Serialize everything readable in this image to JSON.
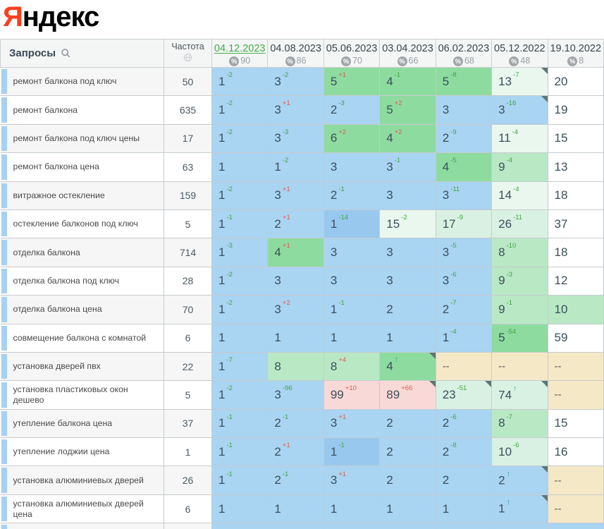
{
  "logo": {
    "ya": "Я",
    "rest": "ндекс"
  },
  "icons": {
    "queries_search": "search-icon",
    "frequency_globe": "globe-icon",
    "coverage_badge": "percent-icon",
    "new_entry_arrow": "↑"
  },
  "colors": {
    "logo_red": "#fc3f1d",
    "selected_date_green": "#3fae49",
    "change_up_green": "#3ba93b",
    "change_down_red": "#e05b52",
    "change_new_teal": "#2ca089",
    "pos_top3_blue": "#a9d4f2",
    "pos_top3_blue_dark": "#98c8ee",
    "pos_top10_green": "#8edb9f",
    "pos_top10_light_green": "#b9e8c5",
    "pos_top30_pale_green": "#d9f1e2",
    "pos_top30_faint_green": "#eaf7ef",
    "pos_drop_pink": "#f9d9d7",
    "pos_none_tan": "#f5e8c7"
  },
  "table": {
    "queries_header": "Запросы",
    "frequency_header": "Частота",
    "columns": [
      {
        "date": "04.12.2023",
        "coverage": "90",
        "selected": true
      },
      {
        "date": "04.08.2023",
        "coverage": "86",
        "selected": false
      },
      {
        "date": "05.06.2023",
        "coverage": "70",
        "selected": false
      },
      {
        "date": "03.04.2023",
        "coverage": "66",
        "selected": false
      },
      {
        "date": "06.02.2023",
        "coverage": "68",
        "selected": false
      },
      {
        "date": "05.12.2022",
        "coverage": "48",
        "selected": false
      },
      {
        "date": "19.10.2022",
        "coverage": "8",
        "selected": false
      }
    ],
    "rows": [
      {
        "query": "ремонт балкона под ключ",
        "frequency": "50",
        "cells": [
          {
            "v": "1",
            "d": "-2",
            "bg": "b"
          },
          {
            "v": "3",
            "d": "-2",
            "bg": "b"
          },
          {
            "v": "5",
            "d": "+1",
            "bg": "g"
          },
          {
            "v": "4",
            "d": "-1",
            "bg": "g"
          },
          {
            "v": "5",
            "d": "-8",
            "bg": "g"
          },
          {
            "v": "13",
            "d": "-7",
            "bg": "gf",
            "fold": true
          },
          {
            "v": "20",
            "bg": "w"
          }
        ]
      },
      {
        "query": "ремонт балкона",
        "frequency": "635",
        "cells": [
          {
            "v": "1",
            "d": "-2",
            "bg": "b"
          },
          {
            "v": "3",
            "d": "+1",
            "bg": "b"
          },
          {
            "v": "2",
            "d": "-3",
            "bg": "b"
          },
          {
            "v": "5",
            "d": "+2",
            "bg": "g"
          },
          {
            "v": "3",
            "bg": "b"
          },
          {
            "v": "3",
            "d": "-16",
            "bg": "b",
            "fold": true
          },
          {
            "v": "19",
            "bg": "w"
          }
        ]
      },
      {
        "query": "ремонт балкона под ключ цены",
        "frequency": "17",
        "cells": [
          {
            "v": "1",
            "d": "-2",
            "bg": "b"
          },
          {
            "v": "3",
            "d": "-3",
            "bg": "b"
          },
          {
            "v": "6",
            "d": "+2",
            "bg": "g"
          },
          {
            "v": "4",
            "d": "+2",
            "bg": "g"
          },
          {
            "v": "2",
            "d": "-9",
            "bg": "b"
          },
          {
            "v": "11",
            "d": "-4",
            "bg": "gf"
          },
          {
            "v": "15",
            "bg": "w"
          }
        ]
      },
      {
        "query": "ремонт балкона цена",
        "frequency": "63",
        "cells": [
          {
            "v": "1",
            "bg": "b"
          },
          {
            "v": "1",
            "d": "-2",
            "bg": "b"
          },
          {
            "v": "3",
            "bg": "b"
          },
          {
            "v": "3",
            "d": "-1",
            "bg": "b"
          },
          {
            "v": "4",
            "d": "-5",
            "bg": "g"
          },
          {
            "v": "9",
            "d": "-4",
            "bg": "gl"
          },
          {
            "v": "13",
            "bg": "w"
          }
        ]
      },
      {
        "query": "витражное остекление",
        "frequency": "159",
        "cells": [
          {
            "v": "1",
            "d": "-2",
            "bg": "b"
          },
          {
            "v": "3",
            "d": "+1",
            "bg": "b"
          },
          {
            "v": "2",
            "d": "-1",
            "bg": "b"
          },
          {
            "v": "3",
            "bg": "b"
          },
          {
            "v": "3",
            "d": "-11",
            "bg": "b"
          },
          {
            "v": "14",
            "d": "-4",
            "bg": "gf"
          },
          {
            "v": "18",
            "bg": "w"
          }
        ]
      },
      {
        "query": "остекление балконов под ключ",
        "frequency": "5",
        "cells": [
          {
            "v": "1",
            "d": "-1",
            "bg": "b"
          },
          {
            "v": "2",
            "d": "+1",
            "bg": "b"
          },
          {
            "v": "1",
            "d": "-14",
            "bg": "bd"
          },
          {
            "v": "15",
            "d": "-2",
            "bg": "gf"
          },
          {
            "v": "17",
            "d": "-9",
            "bg": "gp"
          },
          {
            "v": "26",
            "d": "-11",
            "bg": "gp"
          },
          {
            "v": "37",
            "bg": "w"
          }
        ]
      },
      {
        "query": "отделка балкона",
        "frequency": "714",
        "cells": [
          {
            "v": "1",
            "d": "-3",
            "bg": "b"
          },
          {
            "v": "4",
            "d": "+1",
            "bg": "g"
          },
          {
            "v": "3",
            "bg": "b"
          },
          {
            "v": "3",
            "bg": "b"
          },
          {
            "v": "3",
            "d": "-5",
            "bg": "b"
          },
          {
            "v": "8",
            "d": "-10",
            "bg": "gl"
          },
          {
            "v": "18",
            "bg": "w"
          }
        ]
      },
      {
        "query": "отделка балкона под ключ",
        "frequency": "28",
        "cells": [
          {
            "v": "1",
            "d": "-2",
            "bg": "b"
          },
          {
            "v": "3",
            "bg": "b"
          },
          {
            "v": "3",
            "bg": "b"
          },
          {
            "v": "3",
            "bg": "b"
          },
          {
            "v": "3",
            "d": "-6",
            "bg": "b"
          },
          {
            "v": "9",
            "d": "-3",
            "bg": "gl"
          },
          {
            "v": "12",
            "bg": "w"
          }
        ]
      },
      {
        "query": "отделка балкона цена",
        "frequency": "70",
        "cells": [
          {
            "v": "1",
            "d": "-2",
            "bg": "b"
          },
          {
            "v": "3",
            "d": "+2",
            "bg": "b"
          },
          {
            "v": "1",
            "d": "-1",
            "bg": "b"
          },
          {
            "v": "2",
            "bg": "b"
          },
          {
            "v": "2",
            "d": "-7",
            "bg": "b"
          },
          {
            "v": "9",
            "d": "-1",
            "bg": "gl"
          },
          {
            "v": "10",
            "bg": "gl"
          }
        ]
      },
      {
        "query": "совмещение балкона с комнатой",
        "frequency": "6",
        "cells": [
          {
            "v": "1",
            "bg": "b"
          },
          {
            "v": "1",
            "bg": "b"
          },
          {
            "v": "1",
            "bg": "b"
          },
          {
            "v": "1",
            "bg": "b"
          },
          {
            "v": "1",
            "d": "-4",
            "bg": "b"
          },
          {
            "v": "5",
            "d": "-54",
            "bg": "g"
          },
          {
            "v": "59",
            "bg": "w"
          }
        ]
      },
      {
        "query": "установка дверей пвх",
        "frequency": "22",
        "cells": [
          {
            "v": "1",
            "d": "-7",
            "bg": "b"
          },
          {
            "v": "8",
            "bg": "gl"
          },
          {
            "v": "8",
            "d": "+4",
            "bg": "gl"
          },
          {
            "v": "4",
            "d": "↑",
            "bg": "g",
            "fold": true
          },
          {
            "v": "--",
            "bg": "tn"
          },
          {
            "v": "--",
            "bg": "tn"
          },
          {
            "v": "--",
            "bg": "tn"
          }
        ]
      },
      {
        "query": "установка пластиковых окон дешево",
        "frequency": "5",
        "cells": [
          {
            "v": "1",
            "d": "-2",
            "bg": "b"
          },
          {
            "v": "3",
            "d": "-96",
            "bg": "b"
          },
          {
            "v": "99",
            "d": "+10",
            "bg": "pk"
          },
          {
            "v": "89",
            "d": "+66",
            "bg": "pk",
            "fold": true
          },
          {
            "v": "23",
            "d": "-51",
            "bg": "gp",
            "fold": true
          },
          {
            "v": "74",
            "d": "↑",
            "bg": "gp",
            "fold": true
          },
          {
            "v": "--",
            "bg": "tn"
          }
        ]
      },
      {
        "query": "утепление балкона цена",
        "frequency": "37",
        "cells": [
          {
            "v": "1",
            "d": "-1",
            "bg": "b"
          },
          {
            "v": "2",
            "d": "-1",
            "bg": "b"
          },
          {
            "v": "3",
            "d": "+1",
            "bg": "b"
          },
          {
            "v": "2",
            "bg": "b"
          },
          {
            "v": "2",
            "d": "-6",
            "bg": "b"
          },
          {
            "v": "8",
            "d": "-7",
            "bg": "gl"
          },
          {
            "v": "15",
            "bg": "w"
          }
        ]
      },
      {
        "query": "утепление лоджии цена",
        "frequency": "1",
        "cells": [
          {
            "v": "1",
            "d": "-1",
            "bg": "b"
          },
          {
            "v": "2",
            "d": "+1",
            "bg": "b"
          },
          {
            "v": "1",
            "d": "-1",
            "bg": "bd"
          },
          {
            "v": "2",
            "bg": "b"
          },
          {
            "v": "2",
            "d": "-8",
            "bg": "b"
          },
          {
            "v": "10",
            "d": "-6",
            "bg": "gp"
          },
          {
            "v": "16",
            "bg": "w"
          }
        ]
      },
      {
        "query": "установка алюминиевых дверей",
        "frequency": "26",
        "cells": [
          {
            "v": "1",
            "d": "-1",
            "bg": "b"
          },
          {
            "v": "2",
            "d": "-1",
            "bg": "b"
          },
          {
            "v": "3",
            "d": "+1",
            "bg": "b"
          },
          {
            "v": "2",
            "bg": "b"
          },
          {
            "v": "2",
            "bg": "b"
          },
          {
            "v": "2",
            "d": "↑",
            "bg": "b",
            "fold": true
          },
          {
            "v": "--",
            "bg": "tn"
          }
        ]
      },
      {
        "query": "установка алюминиевых дверей цена",
        "frequency": "6",
        "cells": [
          {
            "v": "1",
            "bg": "b"
          },
          {
            "v": "1",
            "bg": "b"
          },
          {
            "v": "1",
            "bg": "b"
          },
          {
            "v": "1",
            "bg": "b"
          },
          {
            "v": "1",
            "bg": "b"
          },
          {
            "v": "1",
            "d": "↑",
            "bg": "b",
            "fold": true
          },
          {
            "v": "--",
            "bg": "tn"
          }
        ]
      }
    ],
    "partial_row": {
      "cells_bg": "b"
    }
  }
}
